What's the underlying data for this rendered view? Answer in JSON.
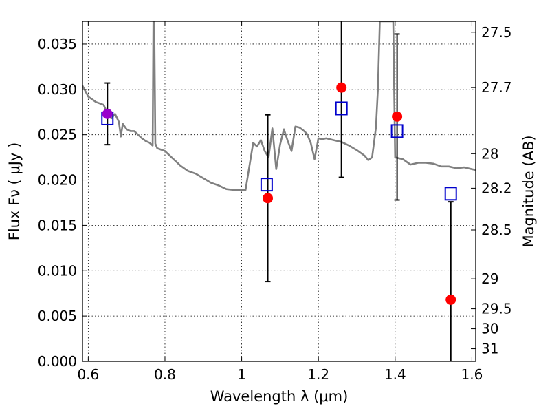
{
  "chart_data": {
    "type": "scatter",
    "xlabel": "Wavelength  λ (μm)",
    "ylabel": "Flux  Fν  ( μJy )",
    "ylabel_right": "Magnitude (AB)",
    "xlim": [
      0.585,
      1.61
    ],
    "ylim": [
      0.0,
      0.0375
    ],
    "grid": true,
    "x_ticks": [
      0.6,
      0.8,
      1.0,
      1.2,
      1.4,
      1.6
    ],
    "x_tick_labels": [
      "0.6",
      "0.8",
      "1",
      "1.2",
      "1.4",
      "1.6"
    ],
    "y_ticks": [
      0.0,
      0.005,
      0.01,
      0.015,
      0.02,
      0.025,
      0.03,
      0.035
    ],
    "y_tick_labels": [
      "0.000",
      "0.005",
      "0.010",
      "0.015",
      "0.020",
      "0.025",
      "0.030",
      "0.035"
    ],
    "right_ticks": [
      {
        "label": "27.5",
        "flux": 0.0363
      },
      {
        "label": "27.7",
        "flux": 0.0302
      },
      {
        "label": "28",
        "flux": 0.0229
      },
      {
        "label": "28.2",
        "flux": 0.0191
      },
      {
        "label": "28.5",
        "flux": 0.0145
      },
      {
        "label": "29",
        "flux": 0.0091
      },
      {
        "label": "29.5",
        "flux": 0.0058
      },
      {
        "label": "30",
        "flux": 0.0036
      },
      {
        "label": "31",
        "flux": 0.0014
      }
    ],
    "series": [
      {
        "kind": "line",
        "color": "#808080",
        "x": [
          0.585,
          0.6,
          0.62,
          0.64,
          0.65,
          0.66,
          0.67,
          0.68,
          0.685,
          0.69,
          0.7,
          0.71,
          0.72,
          0.73,
          0.74,
          0.75,
          0.76,
          0.768,
          0.77,
          0.772,
          0.775,
          0.78,
          0.8,
          0.82,
          0.84,
          0.86,
          0.88,
          0.9,
          0.92,
          0.94,
          0.96,
          0.98,
          1.0,
          1.01,
          1.03,
          1.04,
          1.05,
          1.06,
          1.07,
          1.08,
          1.09,
          1.1,
          1.11,
          1.12,
          1.13,
          1.14,
          1.15,
          1.16,
          1.17,
          1.18,
          1.19,
          1.2,
          1.21,
          1.22,
          1.23,
          1.24,
          1.26,
          1.28,
          1.3,
          1.32,
          1.33,
          1.34,
          1.35,
          1.355,
          1.36,
          1.362,
          1.365,
          1.37,
          1.375,
          1.38,
          1.385,
          1.39,
          1.395,
          1.4,
          1.42,
          1.44,
          1.46,
          1.48,
          1.5,
          1.52,
          1.54,
          1.56,
          1.58,
          1.6,
          1.61
        ],
        "y": [
          0.0304,
          0.0292,
          0.0286,
          0.0283,
          0.0274,
          0.0268,
          0.0273,
          0.0264,
          0.0248,
          0.0262,
          0.0256,
          0.0254,
          0.0254,
          0.025,
          0.0246,
          0.0243,
          0.0241,
          0.0238,
          0.0375,
          0.0375,
          0.024,
          0.0235,
          0.0232,
          0.0224,
          0.0216,
          0.021,
          0.0207,
          0.0202,
          0.0197,
          0.0194,
          0.019,
          0.0189,
          0.0189,
          0.0189,
          0.0241,
          0.0237,
          0.0244,
          0.0232,
          0.0225,
          0.0257,
          0.0212,
          0.0239,
          0.0256,
          0.0243,
          0.0232,
          0.0259,
          0.0258,
          0.0255,
          0.0251,
          0.0241,
          0.0223,
          0.0246,
          0.0245,
          0.0246,
          0.0245,
          0.0244,
          0.0242,
          0.0238,
          0.0233,
          0.0227,
          0.0222,
          0.0225,
          0.0258,
          0.03,
          0.0375,
          0.0375,
          0.0375,
          0.0375,
          0.0375,
          0.0375,
          0.0375,
          0.0375,
          0.0375,
          0.0225,
          0.0223,
          0.0217,
          0.0219,
          0.0219,
          0.0218,
          0.0215,
          0.0215,
          0.0213,
          0.0214,
          0.0212,
          0.0211
        ]
      },
      {
        "kind": "open-square",
        "color": "#0000cc",
        "x": [
          0.65,
          1.065,
          1.26,
          1.405,
          1.545
        ],
        "y": [
          0.0268,
          0.0195,
          0.0279,
          0.0254,
          0.0185
        ]
      },
      {
        "kind": "filled-circle",
        "color": "#ff0000",
        "x": [
          1.068,
          1.26,
          1.405,
          1.545
        ],
        "y": [
          0.018,
          0.0302,
          0.027,
          0.0068
        ],
        "err_low": [
          0.0092,
          0.0099,
          0.0092,
          0.0068
        ],
        "err_high": [
          0.0092,
          0.0075,
          0.0091,
          0.0108
        ]
      },
      {
        "kind": "filled-circle",
        "color": "#9900cc",
        "x": [
          0.65
        ],
        "y": [
          0.0273
        ],
        "err_low": [
          0.0034
        ],
        "err_high": [
          0.0034
        ]
      }
    ]
  }
}
